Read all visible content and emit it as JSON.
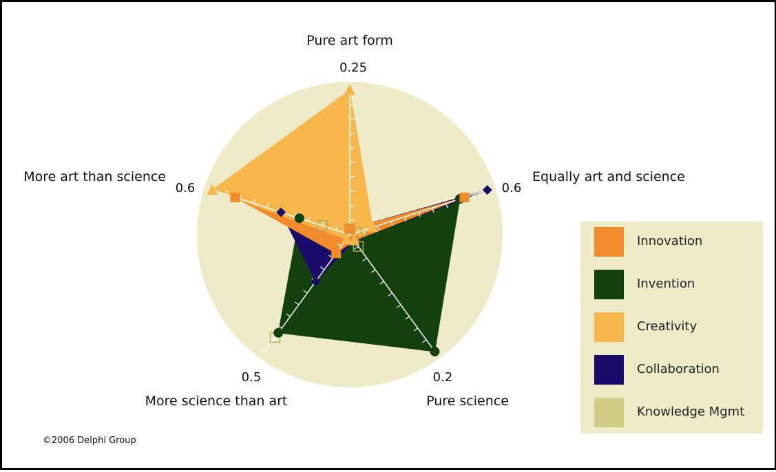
{
  "chart_data": {
    "type": "radar",
    "title": "",
    "axes": [
      {
        "name": "Pure art form",
        "max": 0.25,
        "max_label": "0.25"
      },
      {
        "name": "Equally art and science",
        "max": 0.6,
        "max_label": "0.6"
      },
      {
        "name": "Pure science",
        "max": 0.2,
        "max_label": "0.2"
      },
      {
        "name": "More science than art",
        "max": 0.5,
        "max_label": "0.5"
      },
      {
        "name": "More art than science",
        "max": 0.6,
        "max_label": "0.6"
      }
    ],
    "series": [
      {
        "name": "Knowledge Mgmt",
        "color": "#d2cb88",
        "marker": "hollow-square",
        "filled": false,
        "values": [
          0.01,
          0.03,
          0.02,
          0.44,
          0.12
        ]
      },
      {
        "name": "Invention",
        "color": "#12400f",
        "marker": "circle",
        "filled": true,
        "values": [
          0.01,
          0.48,
          0.2,
          0.42,
          0.22
        ]
      },
      {
        "name": "Collaboration",
        "color": "#1a0a6a",
        "marker": "diamond",
        "filled": true,
        "values": [
          0.01,
          0.6,
          0.01,
          0.2,
          0.3
        ]
      },
      {
        "name": "Innovation",
        "color": "#f28c2a",
        "marker": "square",
        "filled": true,
        "values": [
          0.01,
          0.5,
          0.01,
          0.08,
          0.5
        ]
      },
      {
        "name": "Creativity",
        "color": "#f6b64c",
        "marker": "triangle",
        "filled": true,
        "values": [
          0.25,
          0.1,
          0.01,
          0.02,
          0.6
        ]
      }
    ],
    "background_color": "#eeebc8",
    "legend_position": "right",
    "grid": false
  },
  "legend": {
    "items": [
      {
        "label": "Innovation",
        "color": "#f28c2a"
      },
      {
        "label": "Invention",
        "color": "#12400f"
      },
      {
        "label": "Creativity",
        "color": "#f6b64c"
      },
      {
        "label": "Collaboration",
        "color": "#1a0a6a"
      },
      {
        "label": "Knowledge Mgmt",
        "color": "#d2cb88"
      }
    ]
  },
  "footer": {
    "copyright": "©2006 Delphi Group"
  }
}
